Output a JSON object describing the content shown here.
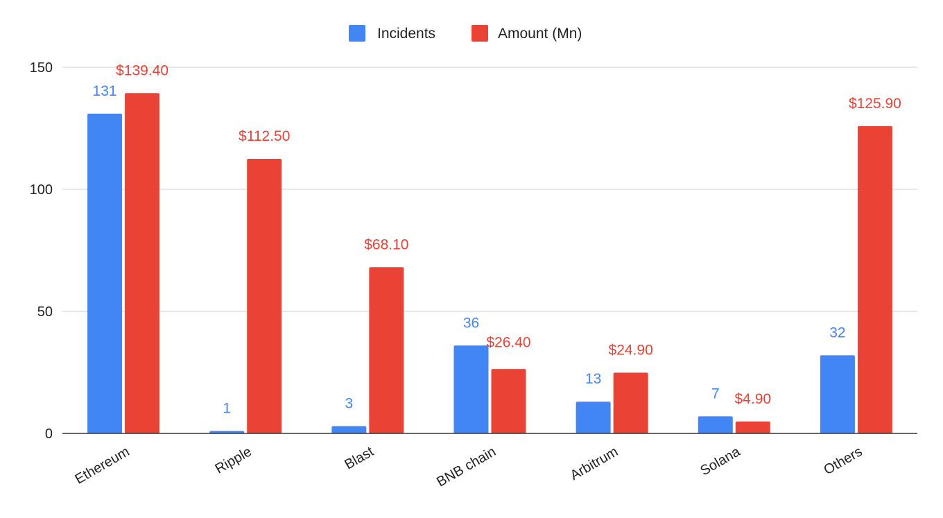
{
  "chart_data": {
    "type": "bar",
    "categories": [
      "Ethereum",
      "Ripple",
      "Blast",
      "BNB chain",
      "Arbitrum",
      "Solana",
      "Others"
    ],
    "series": [
      {
        "name": "Incidents",
        "color": "#4285f4",
        "values": [
          131,
          1,
          3,
          36,
          13,
          7,
          32
        ],
        "labels": [
          "131",
          "1",
          "3",
          "36",
          "13",
          "7",
          "32"
        ]
      },
      {
        "name": "Amount (Mn)",
        "color": "#ea4335",
        "values": [
          139.4,
          112.5,
          68.1,
          26.4,
          24.9,
          4.9,
          125.9
        ],
        "labels": [
          "$139.40",
          "$112.50",
          "$68.10",
          "$26.40",
          "$24.90",
          "$4.90",
          "$125.90"
        ]
      }
    ],
    "title": "",
    "xlabel": "",
    "ylabel": "",
    "ylim": [
      0,
      150
    ],
    "yticks": [
      0,
      50,
      100,
      150
    ],
    "grid": true,
    "legend_position": "top-center"
  }
}
